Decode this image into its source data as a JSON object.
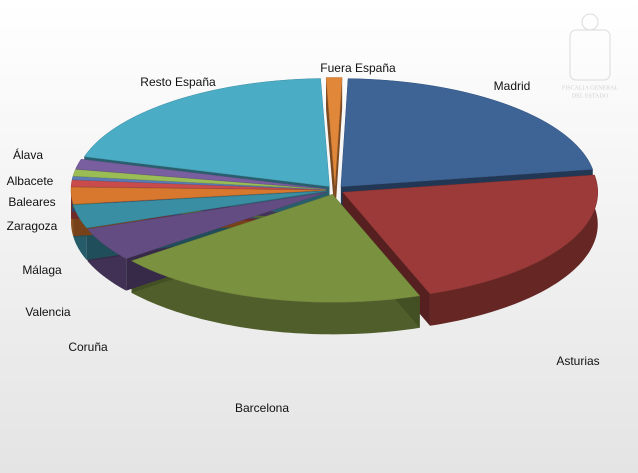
{
  "chart_data": {
    "type": "pie",
    "categories": [
      "Fuera España",
      "Madrid",
      "Asturias",
      "Barcelona",
      "Coruña",
      "Valencia",
      "Málaga",
      "Zaragoza",
      "Baleares",
      "Albacete",
      "Álava",
      "Resto España"
    ],
    "values": [
      1,
      22,
      22,
      20,
      5,
      3.5,
      2.5,
      1,
      0.5,
      1,
      1.5,
      20
    ],
    "colors": [
      "#e0873a",
      "#3e6496",
      "#9b3a38",
      "#7a9140",
      "#634c82",
      "#3a8ea3",
      "#d8782e",
      "#c94b4b",
      "#5a7bb5",
      "#9bbd55",
      "#7a5fa0",
      "#4bacc6"
    ]
  },
  "logo": {
    "line1": "FISCALIA GENERAL",
    "line2": "DEL ESTADO"
  }
}
